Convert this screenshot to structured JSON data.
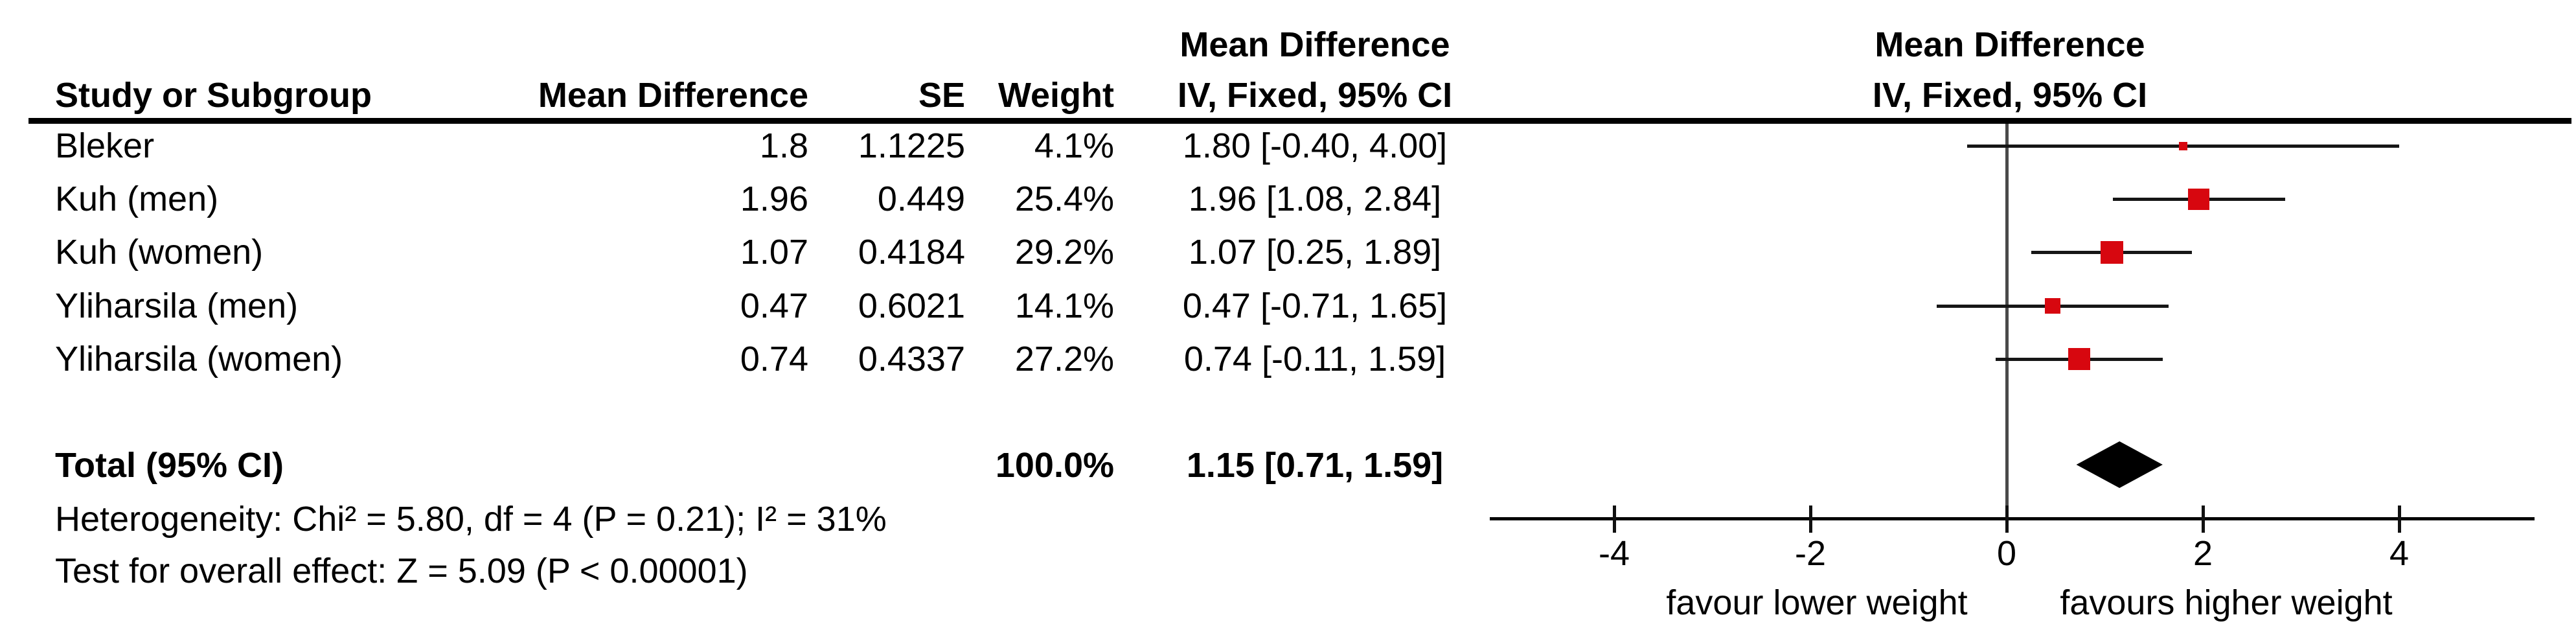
{
  "colors": {
    "marker_red": "#d7070f",
    "line_black": "#161616",
    "zero_line_gray": "#4a4a4a",
    "diamond_black": "#000000"
  },
  "header": {
    "effect_label_left": "Mean Difference",
    "effect_label_right": "Mean Difference",
    "method_label_left": "IV, Fixed, 95% CI",
    "method_label_right": "IV, Fixed, 95% CI",
    "col_study": "Study or Subgroup",
    "col_mean_difference": "Mean Difference",
    "col_se": "SE",
    "col_weight": "Weight"
  },
  "rows": [
    {
      "study": "Bleker",
      "mean_difference": "1.8",
      "se": "1.1225",
      "weight": "4.1%",
      "ci_text": "1.80 [-0.40, 4.00]",
      "mean": 1.8,
      "ci_low": -0.4,
      "ci_high": 4.0,
      "weight_pct": 4.1
    },
    {
      "study": "Kuh (men)",
      "mean_difference": "1.96",
      "se": "0.449",
      "weight": "25.4%",
      "ci_text": "1.96 [1.08, 2.84]",
      "mean": 1.96,
      "ci_low": 1.08,
      "ci_high": 2.84,
      "weight_pct": 25.4
    },
    {
      "study": "Kuh (women)",
      "mean_difference": "1.07",
      "se": "0.4184",
      "weight": "29.2%",
      "ci_text": "1.07 [0.25, 1.89]",
      "mean": 1.07,
      "ci_low": 0.25,
      "ci_high": 1.89,
      "weight_pct": 29.2
    },
    {
      "study": "Yliharsila (men)",
      "mean_difference": "0.47",
      "se": "0.6021",
      "weight": "14.1%",
      "ci_text": "0.47 [-0.71, 1.65]",
      "mean": 0.47,
      "ci_low": -0.71,
      "ci_high": 1.65,
      "weight_pct": 14.1
    },
    {
      "study": "Yliharsila (women)",
      "mean_difference": "0.74",
      "se": "0.4337",
      "weight": "27.2%",
      "ci_text": "0.74 [-0.11, 1.59]",
      "mean": 0.74,
      "ci_low": -0.11,
      "ci_high": 1.59,
      "weight_pct": 27.2
    }
  ],
  "total": {
    "label": "Total (95% CI)",
    "weight": "100.0%",
    "ci_text": "1.15 [0.71, 1.59]",
    "mean": 1.15,
    "ci_low": 0.71,
    "ci_high": 1.59
  },
  "footer": {
    "heterogeneity": "Heterogeneity: Chi² = 5.80, df = 4 (P = 0.21); I² = 31%",
    "overall_effect": "Test for overall effect: Z = 5.09 (P < 0.00001)"
  },
  "axis": {
    "ticks": [
      "-4",
      "-2",
      "0",
      "2",
      "4"
    ],
    "tick_values": [
      -4,
      -2,
      0,
      2,
      4
    ],
    "caption_left": "favour lower weight",
    "caption_right": "favours higher weight"
  },
  "chart_data": {
    "type": "scatter",
    "subtype": "forest-plot-fixed-effect",
    "title": "Mean Difference IV, Fixed, 95% CI",
    "categories": [
      "Bleker",
      "Kuh (men)",
      "Kuh (women)",
      "Yliharsila (men)",
      "Yliharsila (women)"
    ],
    "x": [
      1.8,
      1.96,
      1.07,
      0.47,
      0.74
    ],
    "ci_low": [
      -0.4,
      1.08,
      0.25,
      -0.71,
      -0.11
    ],
    "ci_high": [
      4.0,
      2.84,
      1.89,
      1.65,
      1.59
    ],
    "se": [
      1.1225,
      0.449,
      0.4184,
      0.6021,
      0.4337
    ],
    "weights_pct": [
      4.1,
      25.4,
      29.2,
      14.1,
      27.2
    ],
    "total": {
      "label": "Total (95% CI)",
      "mean": 1.15,
      "ci_low": 0.71,
      "ci_high": 1.59,
      "weight_pct": 100.0
    },
    "heterogeneity": {
      "chi2": 5.8,
      "df": 4,
      "p": 0.21,
      "i2_pct": 31
    },
    "overall_effect": {
      "z": 5.09,
      "p": "< 0.00001"
    },
    "xlim": [
      -5.3,
      5.4
    ],
    "xticks": [
      -4,
      -2,
      0,
      2,
      4
    ],
    "xlabel": "favour lower weight | favours higher weight",
    "grid": false,
    "legend": "none"
  }
}
